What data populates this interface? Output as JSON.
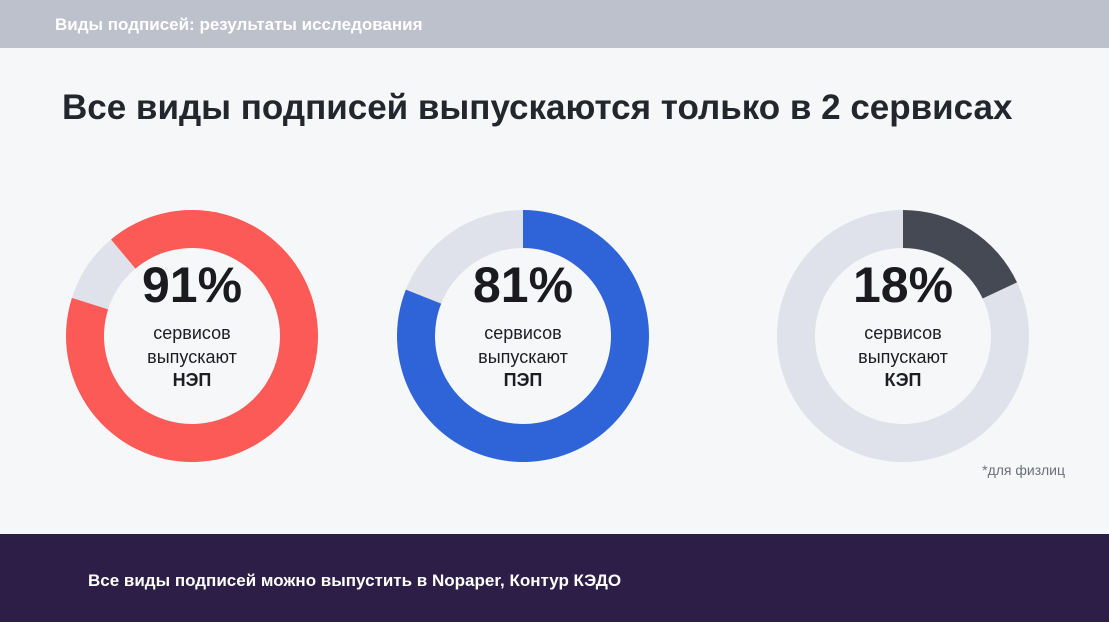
{
  "header": {
    "section_title": "Виды подписей: результаты исследования"
  },
  "headline": "Все виды подписей выпускаются только в 2 сервисах",
  "chart_data": [
    {
      "type": "pie",
      "percent_label": "91%",
      "values": [
        91,
        9
      ],
      "line1": "сервисов",
      "line2": "выпускают",
      "signature_type": "НЭП",
      "color": "#fb5a56",
      "track_color": "#dfe2ea"
    },
    {
      "type": "pie",
      "percent_label": "81%",
      "values": [
        81,
        19
      ],
      "line1": "сервисов",
      "line2": "выпускают",
      "signature_type": "ПЭП",
      "color": "#2f64d9",
      "track_color": "#dfe2ea"
    },
    {
      "type": "pie",
      "percent_label": "18%",
      "values": [
        18,
        82
      ],
      "line1": "сервисов",
      "line2": "выпускают",
      "signature_type": "КЭП",
      "color": "#454953",
      "track_color": "#dfe2ea"
    }
  ],
  "footnote": "*для физлиц",
  "footer": {
    "text": "Все виды подписей можно выпустить в Nopaper, Контур КЭДО"
  }
}
